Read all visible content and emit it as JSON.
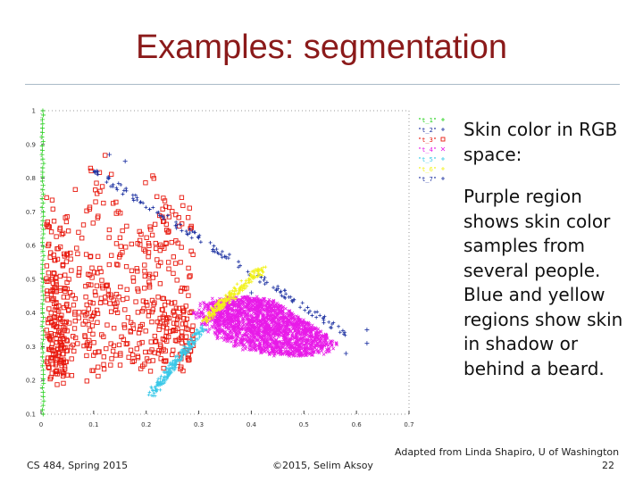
{
  "slide": {
    "title": "Examples: segmentation",
    "description_heading": "Skin color in RGB space:",
    "description_body": "Purple region shows skin color samples from several people. Blue and yellow regions show skin in shadow or behind a beard.",
    "credit": "Adapted from Linda Shapiro, U of Washington",
    "footer_left": "CS 484, Spring 2015",
    "footer_center": "©2015, Selim Aksoy",
    "page_number": "22"
  },
  "colors": {
    "title": "#8b1a1a",
    "red_class": "#e8190e",
    "magenta_class": "#e81be8",
    "blue_class": "#1a2fa0",
    "yellow_class": "#f2f21a",
    "cyan_class": "#39c8e8",
    "green_class": "#23d11a"
  },
  "chart_data": {
    "type": "scatter",
    "xlim": [
      0,
      0.7
    ],
    "ylim": [
      0.1,
      1
    ],
    "x_ticks": [
      "0",
      "0.1",
      "0.2",
      "0.3",
      "0.4",
      "0.5",
      "0.6",
      "0.7"
    ],
    "y_ticks": [
      "0.1",
      "0.2",
      "0.3",
      "0.4",
      "0.5",
      "0.6",
      "0.7",
      "0.8",
      "0.9",
      "1"
    ],
    "legend": [
      "\"t_1\"",
      "\"t_2\"",
      "\"t_3\"",
      "\"t_4\"",
      "\"t_5\"",
      "\"t_6\"",
      "\"t_7\""
    ],
    "legend_placement": "top-right",
    "series": [
      {
        "name": "\"t_1\"",
        "color": "#23d11a",
        "marker": "+",
        "region": {
          "x": [
            0,
            0.005
          ],
          "y": [
            0.1,
            1
          ]
        }
      },
      {
        "name": "\"t_2\"",
        "color": "#1a2fa0",
        "marker": "+",
        "region": {
          "line_from": [
            0.25,
            0.73
          ],
          "line_to": [
            0.58,
            0.32
          ]
        }
      },
      {
        "name": "\"t_3\"",
        "color": "#e8190e",
        "marker": "square",
        "region": {
          "x": [
            0.01,
            0.3
          ],
          "y": [
            0.2,
            0.85
          ]
        }
      },
      {
        "name": "\"t_4\"",
        "color": "#e81be8",
        "marker": "x",
        "region": {
          "x": [
            0.3,
            0.55
          ],
          "y": [
            0.2,
            0.5
          ]
        }
      },
      {
        "name": "\"t_5\"",
        "color": "#39c8e8",
        "marker": "+",
        "region": {
          "x": [
            0.2,
            0.32
          ],
          "y": [
            0.15,
            0.38
          ]
        }
      },
      {
        "name": "\"t_6\"",
        "color": "#f2f21a",
        "marker": "+",
        "region": {
          "x": [
            0.32,
            0.43
          ],
          "y": [
            0.38,
            0.55
          ]
        }
      },
      {
        "name": "\"t_7\"",
        "color": "#1a2fa0",
        "marker": "+",
        "region": {
          "x": [
            0.1,
            0.7
          ],
          "y": [
            0.25,
            0.9
          ]
        }
      }
    ]
  }
}
